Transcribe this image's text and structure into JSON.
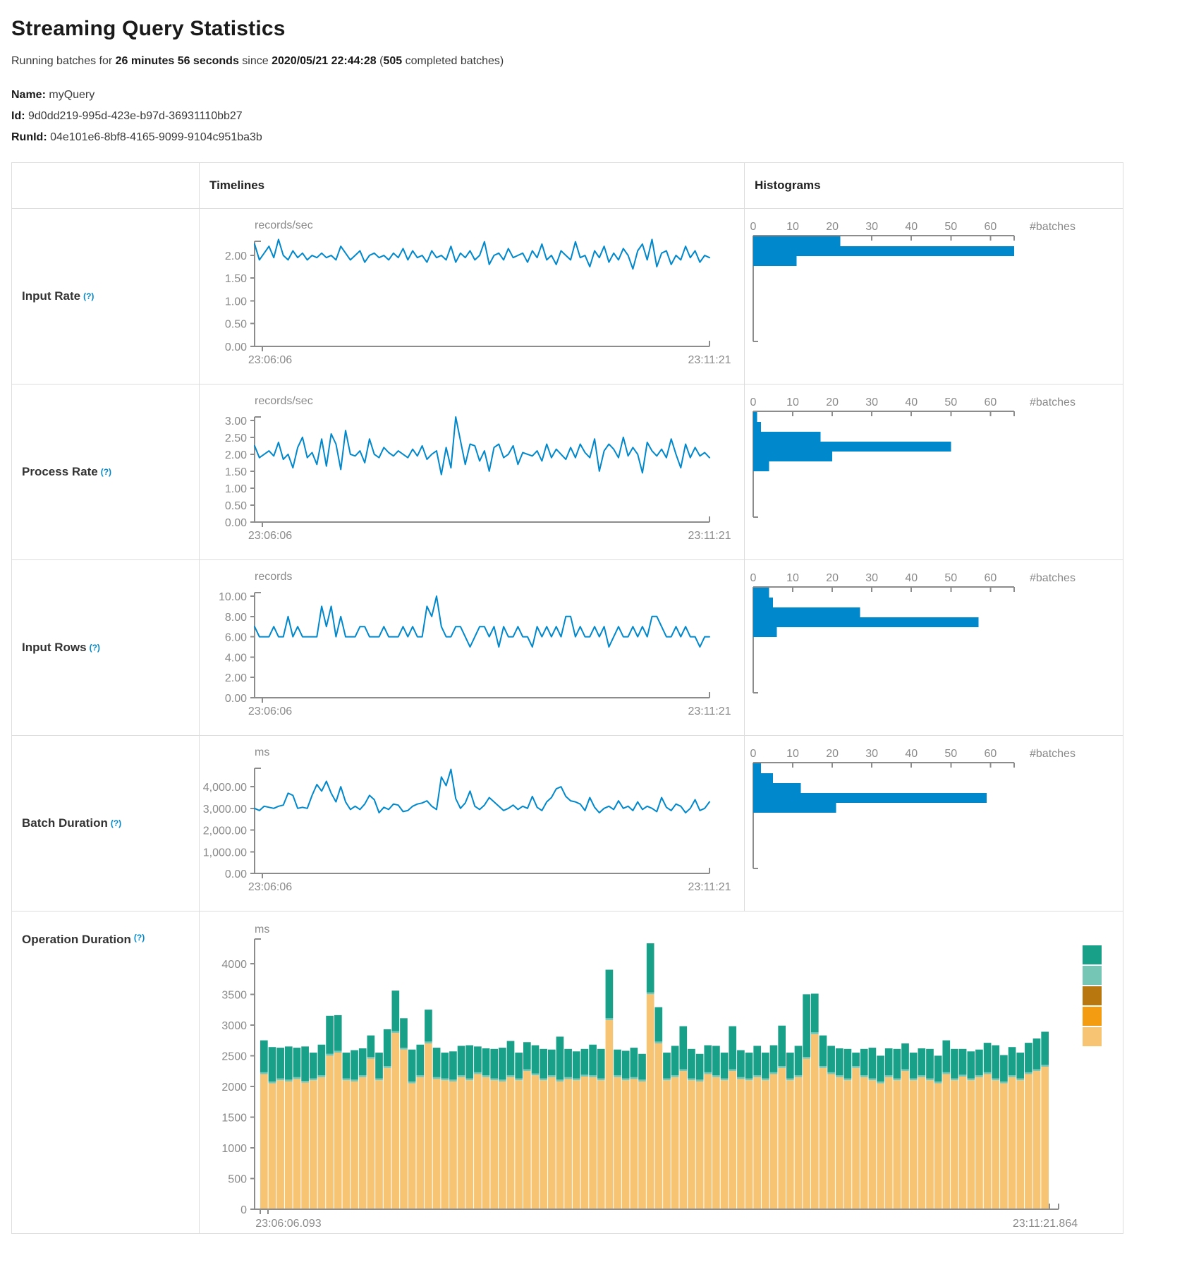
{
  "page": {
    "title": "Streaming Query Statistics"
  },
  "subtitle": {
    "p1": "Running batches for ",
    "duration": "26 minutes 56 seconds",
    "p2": " since ",
    "start_time": "2020/05/21 22:44:28",
    "p3": " (",
    "completed_batches": "505",
    "p4": " completed batches)"
  },
  "query_info": {
    "name_label": "Name: ",
    "name": "myQuery",
    "id_label": "Id: ",
    "id": "9d0dd219-995d-423e-b97d-36931110bb27",
    "runid_label": "RunId: ",
    "runid": "04e101e6-8bf8-4165-9099-9104c951ba3b"
  },
  "table": {
    "col_timelines": "Timelines",
    "col_histograms": "Histograms",
    "help_symbol": "(?)",
    "rows": [
      {
        "label": "Input Rate"
      },
      {
        "label": "Process Rate"
      },
      {
        "label": "Input Rows"
      },
      {
        "label": "Batch Duration"
      },
      {
        "label": "Operation Duration"
      }
    ]
  },
  "colors": {
    "blue": "#0088cc",
    "axis": "#8c8c8c",
    "teal": "#19A089",
    "light_teal": "#76C6B6",
    "dark_ochre": "#B8770F",
    "orange": "#F39C12",
    "tan": "#F7C474"
  },
  "chart_data": [
    {
      "id": "input-rate-timeline",
      "type": "line",
      "unit": "records/sec",
      "x_start": "23:06:06",
      "x_end": "23:11:21",
      "yticks": [
        0,
        0.5,
        1,
        1.5,
        2
      ],
      "ylabels": [
        "0.00",
        "0.50",
        "1.00",
        "1.50",
        "2.00"
      ],
      "ymax": 2.31,
      "values": [
        2.25,
        1.9,
        2.05,
        2.2,
        1.95,
        2.35,
        2.0,
        1.9,
        2.1,
        1.95,
        2.05,
        1.9,
        2.0,
        1.95,
        2.05,
        1.95,
        2.0,
        1.9,
        2.2,
        2.05,
        1.9,
        2.0,
        2.1,
        1.85,
        2.0,
        2.05,
        1.95,
        2.0,
        1.9,
        2.05,
        1.95,
        2.15,
        1.9,
        2.1,
        1.95,
        2.0,
        1.85,
        2.1,
        1.95,
        2.0,
        1.9,
        2.2,
        1.85,
        2.05,
        1.95,
        2.1,
        1.9,
        2.0,
        2.3,
        1.8,
        2.0,
        2.05,
        1.9,
        2.15,
        1.95,
        2.0,
        2.05,
        1.85,
        2.1,
        1.95,
        2.25,
        1.9,
        2.0,
        1.8,
        2.1,
        2.0,
        1.9,
        2.3,
        1.95,
        2.0,
        1.75,
        2.1,
        1.95,
        2.2,
        1.85,
        2.05,
        1.9,
        2.15,
        2.0,
        1.7,
        2.1,
        2.25,
        1.9,
        2.35,
        1.75,
        2.05,
        2.1,
        1.8,
        2.0,
        1.9,
        2.2,
        1.95,
        2.1,
        1.85,
        2.0,
        1.95
      ]
    },
    {
      "id": "input-rate-histogram",
      "type": "hist",
      "xlabel": "#batches",
      "xticks": [
        0,
        10,
        20,
        30,
        40,
        50,
        60
      ],
      "axis_max": 66,
      "values": [
        22,
        66,
        11
      ]
    },
    {
      "id": "process-rate-timeline",
      "type": "line",
      "unit": "records/sec",
      "x_start": "23:06:06",
      "x_end": "23:11:21",
      "yticks": [
        0,
        0.5,
        1,
        1.5,
        2,
        2.5,
        3
      ],
      "ylabels": [
        "0.00",
        "0.50",
        "1.00",
        "1.50",
        "2.00",
        "2.50",
        "3.00"
      ],
      "ymax": 3.1,
      "values": [
        2.25,
        1.9,
        2.0,
        2.1,
        1.95,
        2.35,
        1.85,
        2.0,
        1.6,
        2.2,
        2.5,
        1.9,
        2.05,
        1.7,
        2.45,
        1.65,
        2.6,
        2.3,
        1.55,
        2.7,
        2.0,
        1.95,
        2.1,
        1.75,
        2.45,
        2.0,
        1.9,
        2.2,
        2.05,
        1.95,
        2.1,
        2.0,
        1.9,
        2.15,
        1.95,
        2.25,
        1.85,
        2.0,
        2.1,
        1.4,
        2.2,
        1.6,
        3.1,
        2.4,
        1.7,
        2.3,
        2.25,
        1.8,
        2.1,
        1.5,
        2.2,
        2.3,
        1.9,
        2.0,
        2.25,
        1.7,
        2.05,
        2.0,
        1.95,
        2.1,
        1.8,
        2.3,
        1.9,
        2.15,
        2.0,
        1.85,
        2.2,
        1.9,
        2.3,
        2.05,
        1.9,
        2.45,
        1.5,
        2.1,
        2.3,
        2.15,
        1.9,
        2.5,
        1.95,
        2.2,
        2.0,
        1.45,
        2.35,
        2.1,
        1.95,
        2.15,
        1.9,
        2.45,
        2.0,
        1.6,
        2.3,
        1.9,
        2.2,
        1.95,
        2.05,
        1.9
      ]
    },
    {
      "id": "process-rate-histogram",
      "type": "hist",
      "xlabel": "#batches",
      "xticks": [
        0,
        10,
        20,
        30,
        40,
        50,
        60
      ],
      "axis_max": 66,
      "values": [
        1,
        2,
        17,
        50,
        20,
        4
      ]
    },
    {
      "id": "input-rows-timeline",
      "type": "line",
      "unit": "records",
      "x_start": "23:06:06",
      "x_end": "23:11:21",
      "yticks": [
        0,
        2,
        4,
        6,
        8,
        10
      ],
      "ylabels": [
        "0.00",
        "2.00",
        "4.00",
        "6.00",
        "8.00",
        "10.00"
      ],
      "ymax": 10.35,
      "values": [
        7,
        6,
        6,
        6,
        7,
        6,
        6,
        8,
        6,
        7,
        6,
        6,
        6,
        6,
        9,
        7,
        9,
        6,
        8,
        6,
        6,
        6,
        7,
        7,
        6,
        6,
        6,
        7,
        6,
        6,
        6,
        7,
        6,
        7,
        6,
        6,
        9,
        8,
        10,
        7,
        6,
        6,
        7,
        7,
        6,
        5,
        6,
        7,
        7,
        6,
        7,
        5,
        7,
        6,
        6,
        7,
        6,
        6,
        5,
        7,
        6,
        7,
        6,
        7,
        6,
        8,
        8,
        6,
        7,
        6,
        6,
        7,
        6,
        7,
        5,
        6,
        7,
        6,
        6,
        7,
        6,
        7,
        6,
        8,
        8,
        7,
        6,
        6,
        7,
        6,
        7,
        6,
        6,
        5,
        6,
        6
      ]
    },
    {
      "id": "input-rows-histogram",
      "type": "hist",
      "xlabel": "#batches",
      "xticks": [
        0,
        10,
        20,
        30,
        40,
        50,
        60
      ],
      "axis_max": 66,
      "values": [
        4,
        5,
        27,
        57,
        6
      ]
    },
    {
      "id": "batch-duration-timeline",
      "type": "line",
      "unit": "ms",
      "x_start": "23:06:06",
      "x_end": "23:11:21",
      "yticks": [
        0,
        1000,
        2000,
        3000,
        4000
      ],
      "ylabels": [
        "0.00",
        "1,000.00",
        "2,000.00",
        "3,000.00",
        "4,000.00"
      ],
      "ymax": 4850,
      "values": [
        3000,
        2900,
        3100,
        3050,
        3000,
        3100,
        3150,
        3700,
        3600,
        3000,
        3050,
        3000,
        3600,
        4100,
        3800,
        4250,
        3700,
        3300,
        4000,
        3300,
        2950,
        3100,
        2950,
        3200,
        3600,
        3400,
        2800,
        3050,
        2950,
        3200,
        3150,
        2850,
        2900,
        3100,
        3200,
        3250,
        3350,
        3100,
        2950,
        4450,
        4050,
        4800,
        3450,
        3000,
        3250,
        3800,
        3100,
        2950,
        3150,
        3500,
        3300,
        3100,
        2900,
        3000,
        3150,
        2950,
        3100,
        3000,
        3550,
        3050,
        2900,
        3300,
        3500,
        3900,
        4000,
        3550,
        3350,
        3300,
        3200,
        2900,
        3500,
        3050,
        2800,
        3000,
        3100,
        2950,
        3350,
        3000,
        3100,
        2900,
        3300,
        2950,
        3100,
        3000,
        2850,
        3500,
        3050,
        2900,
        3200,
        3100,
        2800,
        3000,
        3400,
        2900,
        3000,
        3300
      ]
    },
    {
      "id": "batch-duration-histogram",
      "type": "hist",
      "xlabel": "#batches",
      "xticks": [
        0,
        10,
        20,
        30,
        40,
        50,
        60
      ],
      "axis_max": 66,
      "values": [
        2,
        5,
        12,
        59,
        21
      ]
    },
    {
      "id": "operation-duration",
      "type": "stack",
      "unit": "ms",
      "x_start": "23:06:06.093",
      "x_end": "23:11:21.864",
      "yticks": [
        0,
        500,
        1000,
        1500,
        2000,
        2500,
        3000,
        3500,
        4000
      ],
      "ylabels": [
        "0",
        "500",
        "1000",
        "1500",
        "2000",
        "2500",
        "3000",
        "3500",
        "4000"
      ],
      "ymax": 4400,
      "middle_value": 30,
      "legend_colors": [
        "#19A089",
        "#76C6B6",
        "#B8770F",
        "#F39C12",
        "#F7C474"
      ],
      "bottom_color": "#F7C474",
      "middle_color": "#76C6B6",
      "top_color": "#19A089",
      "bottom": [
        2200,
        2050,
        2100,
        2080,
        2120,
        2060,
        2100,
        2150,
        2500,
        2550,
        2100,
        2080,
        2150,
        2450,
        2100,
        2300,
        2870,
        2600,
        2050,
        2150,
        2700,
        2120,
        2100,
        2080,
        2150,
        2100,
        2200,
        2150,
        2100,
        2080,
        2150,
        2100,
        2250,
        2180,
        2100,
        2150,
        2080,
        2120,
        2100,
        2160,
        2150,
        2100,
        3080,
        2150,
        2100,
        2120,
        2080,
        3500,
        2700,
        2100,
        2150,
        2250,
        2100,
        2080,
        2200,
        2150,
        2100,
        2250,
        2120,
        2100,
        2150,
        2100,
        2200,
        2300,
        2100,
        2150,
        2450,
        2850,
        2300,
        2200,
        2150,
        2100,
        2300,
        2150,
        2100,
        2050,
        2150,
        2100,
        2250,
        2100,
        2150,
        2100,
        2050,
        2200,
        2100,
        2160,
        2100,
        2150,
        2200,
        2100,
        2050,
        2150,
        2100,
        2200,
        2250,
        2320
      ],
      "top": [
        520,
        560,
        500,
        540,
        480,
        560,
        420,
        500,
        620,
        580,
        420,
        480,
        440,
        350,
        420,
        600,
        660,
        480,
        520,
        500,
        520,
        480,
        420,
        460,
        480,
        540,
        420,
        440,
        480,
        520,
        560,
        420,
        440,
        460,
        480,
        420,
        700,
        460,
        440,
        420,
        500,
        480,
        790,
        420,
        450,
        480,
        420,
        800,
        560,
        420,
        480,
        700,
        480,
        420,
        440,
        480,
        420,
        700,
        440,
        420,
        480,
        420,
        440,
        660,
        420,
        480,
        1020,
        630,
        500,
        430,
        440,
        480,
        220,
        430,
        500,
        420,
        440,
        480,
        420,
        420,
        440,
        480,
        420,
        520,
        480,
        420,
        440,
        420,
        480,
        540,
        430,
        460,
        420,
        480,
        500,
        540
      ]
    }
  ]
}
